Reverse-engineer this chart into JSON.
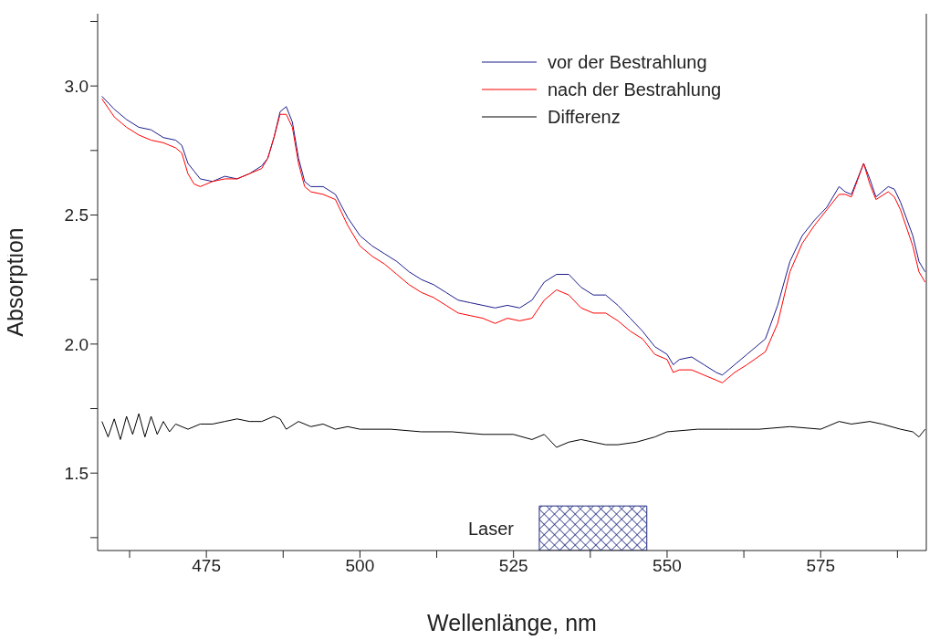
{
  "chart_data": {
    "type": "line",
    "xlabel": "Wellenlänge, nm",
    "ylabel": "Absorption",
    "xlim": [
      457.3,
      592.2
    ],
    "ylim": [
      1.2,
      3.28
    ],
    "xticks": [
      {
        "value": 462.5,
        "label": null
      },
      475,
      {
        "value": 487.5,
        "label": null
      },
      500,
      {
        "value": 512.5,
        "label": null
      },
      525,
      {
        "value": 537.5,
        "label": null
      },
      550,
      {
        "value": 562.5,
        "label": null
      },
      575,
      {
        "value": 587.5,
        "label": null
      }
    ],
    "yticks": [
      {
        "value": 1.25,
        "label": null
      },
      1.5,
      {
        "value": 1.75,
        "label": null
      },
      {
        "value": 2.0,
        "label": "2.0"
      },
      {
        "value": 2.25,
        "label": null
      },
      2.5,
      {
        "value": 2.75,
        "label": null
      },
      {
        "value": 3.0,
        "label": "3.0"
      },
      {
        "value": 3.25,
        "label": null
      }
    ],
    "grid": false,
    "legend": "top right",
    "marker": "none",
    "line_style": "solid",
    "bands": [
      {
        "axis": "x",
        "from": 529.2,
        "to": 546.7,
        "label": "Laser",
        "color": "#1f2a80"
      }
    ],
    "series": [
      {
        "name": "vor der Bestrahlung",
        "color": "#1c1c8c",
        "x": [
          458,
          460,
          462,
          464,
          466,
          468,
          470,
          471,
          472,
          473,
          474,
          476,
          478,
          480,
          482,
          484,
          485,
          486,
          487,
          488,
          489,
          490,
          491,
          492,
          494,
          496,
          498,
          500,
          502,
          504,
          506,
          508,
          510,
          512,
          514,
          516,
          518,
          520,
          522,
          524,
          526,
          528,
          530,
          532,
          534,
          536,
          538,
          540,
          542,
          544,
          546,
          548,
          550,
          551,
          552,
          554,
          556,
          558,
          559,
          561,
          563,
          566,
          568,
          570,
          572,
          574,
          576,
          578,
          579,
          580,
          582,
          583,
          584,
          586,
          587,
          588,
          590,
          591,
          592
        ],
        "values": [
          2.96,
          2.91,
          2.87,
          2.84,
          2.83,
          2.8,
          2.79,
          2.77,
          2.7,
          2.67,
          2.64,
          2.63,
          2.65,
          2.64,
          2.66,
          2.69,
          2.72,
          2.8,
          2.9,
          2.92,
          2.86,
          2.72,
          2.63,
          2.61,
          2.61,
          2.58,
          2.49,
          2.42,
          2.38,
          2.35,
          2.32,
          2.28,
          2.25,
          2.23,
          2.2,
          2.17,
          2.16,
          2.15,
          2.14,
          2.15,
          2.14,
          2.17,
          2.24,
          2.27,
          2.27,
          2.22,
          2.19,
          2.19,
          2.15,
          2.1,
          2.05,
          1.99,
          1.96,
          1.92,
          1.94,
          1.95,
          1.92,
          1.89,
          1.88,
          1.92,
          1.96,
          2.02,
          2.15,
          2.32,
          2.42,
          2.48,
          2.53,
          2.61,
          2.59,
          2.58,
          2.7,
          2.64,
          2.57,
          2.61,
          2.6,
          2.55,
          2.42,
          2.32,
          2.28
        ]
      },
      {
        "name": "nach der Bestrahlung",
        "color": "#ff0000",
        "x": [
          458,
          460,
          462,
          464,
          466,
          468,
          470,
          471,
          472,
          473,
          474,
          476,
          478,
          480,
          482,
          484,
          485,
          486,
          487,
          488,
          489,
          490,
          491,
          492,
          494,
          496,
          498,
          500,
          502,
          504,
          506,
          508,
          510,
          512,
          514,
          516,
          518,
          520,
          522,
          524,
          526,
          528,
          530,
          532,
          534,
          536,
          538,
          540,
          542,
          544,
          546,
          548,
          550,
          551,
          552,
          554,
          556,
          558,
          559,
          561,
          563,
          566,
          568,
          570,
          572,
          574,
          576,
          578,
          579,
          580,
          582,
          583,
          584,
          586,
          587,
          588,
          590,
          591,
          592
        ],
        "values": [
          2.95,
          2.88,
          2.84,
          2.81,
          2.79,
          2.78,
          2.76,
          2.74,
          2.66,
          2.62,
          2.61,
          2.63,
          2.64,
          2.64,
          2.66,
          2.68,
          2.72,
          2.8,
          2.89,
          2.89,
          2.84,
          2.7,
          2.61,
          2.59,
          2.58,
          2.56,
          2.46,
          2.38,
          2.34,
          2.31,
          2.27,
          2.23,
          2.2,
          2.18,
          2.15,
          2.12,
          2.11,
          2.1,
          2.08,
          2.1,
          2.09,
          2.1,
          2.17,
          2.21,
          2.19,
          2.14,
          2.12,
          2.12,
          2.09,
          2.05,
          2.02,
          1.96,
          1.94,
          1.89,
          1.9,
          1.9,
          1.88,
          1.86,
          1.85,
          1.89,
          1.92,
          1.97,
          2.08,
          2.28,
          2.39,
          2.46,
          2.52,
          2.58,
          2.58,
          2.57,
          2.7,
          2.62,
          2.56,
          2.59,
          2.57,
          2.52,
          2.38,
          2.28,
          2.24
        ]
      },
      {
        "name": "Differenz",
        "color": "#000000",
        "x": [
          458,
          459,
          460,
          461,
          462,
          463,
          464,
          465,
          466,
          467,
          468,
          469,
          470,
          472,
          474,
          476,
          478,
          480,
          482,
          484,
          486,
          487,
          488,
          490,
          492,
          494,
          496,
          498,
          500,
          505,
          510,
          515,
          520,
          525,
          528,
          530,
          532,
          534,
          536,
          538,
          540,
          542,
          545,
          548,
          550,
          555,
          560,
          565,
          570,
          575,
          578,
          580,
          583,
          585,
          588,
          590,
          591,
          592
        ],
        "values": [
          1.7,
          1.64,
          1.71,
          1.63,
          1.72,
          1.65,
          1.73,
          1.64,
          1.72,
          1.65,
          1.7,
          1.66,
          1.69,
          1.67,
          1.69,
          1.69,
          1.7,
          1.71,
          1.7,
          1.7,
          1.72,
          1.71,
          1.67,
          1.7,
          1.68,
          1.69,
          1.67,
          1.68,
          1.67,
          1.67,
          1.66,
          1.66,
          1.65,
          1.65,
          1.63,
          1.65,
          1.6,
          1.62,
          1.63,
          1.62,
          1.61,
          1.61,
          1.62,
          1.64,
          1.66,
          1.67,
          1.67,
          1.67,
          1.68,
          1.67,
          1.7,
          1.69,
          1.7,
          1.69,
          1.67,
          1.66,
          1.64,
          1.67
        ]
      }
    ]
  }
}
